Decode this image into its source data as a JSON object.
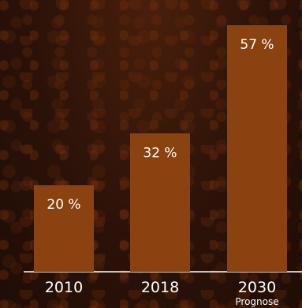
{
  "chart_data": {
    "type": "bar",
    "categories": [
      "2010",
      "2018",
      "2030"
    ],
    "category_sublabels": [
      "",
      "",
      "Prognose"
    ],
    "values": [
      20,
      32,
      57
    ],
    "value_labels": [
      "20 %",
      "32 %",
      "57 %"
    ],
    "unit": "%",
    "grid": false,
    "legend": "none",
    "ylim": [
      0,
      57
    ],
    "colors": {
      "bar": "#8a4210",
      "text": "#ffffff",
      "background": "#2a1208"
    }
  }
}
